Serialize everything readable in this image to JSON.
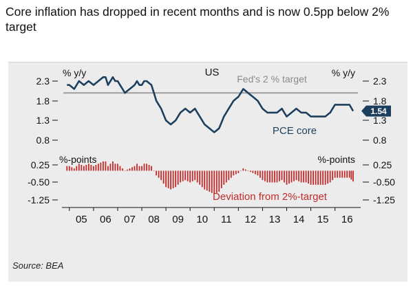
{
  "title": "Core inflation has dropped in recent months and is now 0.5pp below 2% target",
  "source": "Source: BEA",
  "colors": {
    "pce_line": "#1d3f5e",
    "target_line": "#9e9e9e",
    "deviation_bar": "#c22a2a",
    "badge": "#1d3f5e",
    "background": "#ececec"
  },
  "chart_data": [
    {
      "type": "line",
      "title": "US",
      "ylabel_left": "% y/y",
      "ylabel_right": "% y/y",
      "yticks": [
        "2.3",
        "1.8",
        "1.3",
        "0.8"
      ],
      "ylim": [
        0.8,
        2.3
      ],
      "target_value": 2.0,
      "target_label": "Fed's 2 % target",
      "series": [
        {
          "name": "PCE core",
          "x": [
            2004.9,
            2005.0,
            2005.2,
            2005.4,
            2005.6,
            2005.8,
            2006.0,
            2006.2,
            2006.4,
            2006.5,
            2006.6,
            2006.8,
            2006.9,
            2007.0,
            2007.2,
            2007.3,
            2007.5,
            2007.7,
            2007.8,
            2007.9,
            2008.0,
            2008.1,
            2008.2,
            2008.4,
            2008.6,
            2008.8,
            2009.0,
            2009.2,
            2009.4,
            2009.6,
            2009.8,
            2010.0,
            2010.2,
            2010.4,
            2010.6,
            2010.8,
            2011.0,
            2011.2,
            2011.4,
            2011.6,
            2011.8,
            2012.0,
            2012.2,
            2012.4,
            2012.6,
            2012.8,
            2013.0,
            2013.2,
            2013.4,
            2013.6,
            2013.8,
            2014.0,
            2014.2,
            2014.4,
            2014.6,
            2014.8,
            2015.0,
            2015.2,
            2015.4,
            2015.6,
            2015.8,
            2016.0,
            2016.2,
            2016.4,
            2016.6,
            2016.75
          ],
          "values": [
            2.2,
            2.2,
            2.1,
            2.3,
            2.2,
            2.3,
            2.2,
            2.3,
            2.4,
            2.4,
            2.2,
            2.4,
            2.3,
            2.3,
            2.1,
            2.0,
            2.1,
            2.2,
            2.3,
            2.2,
            2.2,
            2.3,
            2.3,
            2.2,
            1.8,
            1.6,
            1.3,
            1.2,
            1.3,
            1.5,
            1.6,
            1.5,
            1.6,
            1.4,
            1.2,
            1.1,
            1.0,
            1.1,
            1.4,
            1.6,
            1.8,
            1.9,
            2.1,
            2.0,
            1.9,
            1.8,
            1.6,
            1.5,
            1.5,
            1.5,
            1.6,
            1.4,
            1.5,
            1.6,
            1.5,
            1.5,
            1.4,
            1.4,
            1.4,
            1.4,
            1.5,
            1.7,
            1.7,
            1.7,
            1.7,
            1.54
          ]
        }
      ],
      "series_label": "PCE core",
      "last_value_label": "1.54"
    },
    {
      "type": "bar",
      "ylabel_left": "%-points",
      "ylabel_right": "%-points",
      "yticks": [
        "0.25",
        "-0.50",
        "-1.25"
      ],
      "ylim": [
        -1.25,
        0.25
      ],
      "series_label": "Deviation from 2%-target",
      "derived_from": "PCE core minus 2.0"
    }
  ],
  "x_axis": {
    "categories": [
      "05",
      "06",
      "07",
      "08",
      "09",
      "10",
      "11",
      "12",
      "13",
      "14",
      "15",
      "16"
    ],
    "range": [
      2004.75,
      2016.95
    ]
  }
}
